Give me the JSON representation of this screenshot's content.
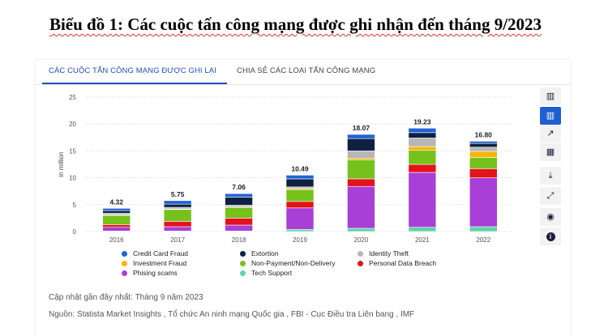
{
  "doc_title": "Biểu đồ 1: Các cuộc tấn công mạng được ghi nhận đến tháng 9/2023",
  "tabs": [
    {
      "label": "CÁC CUỘC TẤN CÔNG MẠNG ĐƯỢC GHI LẠI",
      "active": true
    },
    {
      "label": "CHIA SẺ CÁC LOẠI TẤN CÔNG MẠNG",
      "active": false
    }
  ],
  "toolbar": [
    {
      "icon": "bar-chart-icon",
      "glyph": "▥",
      "active": false
    },
    {
      "icon": "stacked-bar-icon",
      "glyph": "▥",
      "active": true
    },
    {
      "icon": "trend-line-icon",
      "glyph": "↗",
      "active": false
    },
    {
      "icon": "table-icon",
      "glyph": "▦",
      "active": false
    },
    {
      "icon": "download-icon",
      "glyph": "⤓",
      "active": false
    },
    {
      "icon": "fullscreen-icon",
      "glyph": "⤢",
      "active": false
    },
    {
      "icon": "hide-icon",
      "glyph": "◉",
      "active": false
    },
    {
      "icon": "info-icon",
      "glyph": "i",
      "active": false
    }
  ],
  "chart_data": {
    "type": "bar",
    "stacked": true,
    "ylabel": "in million",
    "ylim": [
      0,
      25
    ],
    "yticks": [
      0,
      5,
      10,
      15,
      20,
      25
    ],
    "grid": true,
    "legend_position": "bottom",
    "categories": [
      "2016",
      "2017",
      "2018",
      "2019",
      "2020",
      "2021",
      "2022"
    ],
    "totals": [
      4.32,
      5.75,
      7.06,
      10.49,
      18.07,
      19.23,
      16.8
    ],
    "series": [
      {
        "name": "Tech Support",
        "color": "#5fd3a8",
        "values": [
          0.1,
          0.1,
          0.1,
          0.4,
          0.6,
          0.8,
          0.9
        ]
      },
      {
        "name": "Phising scams",
        "color": "#a83fd6",
        "values": [
          0.7,
          0.8,
          1.1,
          4.0,
          7.8,
          10.2,
          9.1
        ]
      },
      {
        "name": "Personal Data Breach",
        "color": "#e4121a",
        "values": [
          0.5,
          1.0,
          1.3,
          1.2,
          1.4,
          1.5,
          1.7
        ]
      },
      {
        "name": "Non-Payment/Non-Delivery",
        "color": "#74c21b",
        "values": [
          1.7,
          2.2,
          2.0,
          2.2,
          3.5,
          2.6,
          2.1
        ]
      },
      {
        "name": "Investment Fraud",
        "color": "#ffb400",
        "values": [
          0.1,
          0.1,
          0.1,
          0.2,
          0.3,
          0.7,
          1.1
        ]
      },
      {
        "name": "Identity Theft",
        "color": "#b7b7b7",
        "values": [
          0.3,
          0.3,
          0.3,
          0.3,
          1.4,
          1.6,
          0.8
        ]
      },
      {
        "name": "Extortion",
        "color": "#0e2142",
        "values": [
          0.5,
          0.6,
          1.5,
          1.5,
          2.3,
          1.0,
          0.7
        ]
      },
      {
        "name": "Credit Card Fraud",
        "color": "#1f63d6",
        "values": [
          0.42,
          0.65,
          0.66,
          0.69,
          0.77,
          0.83,
          0.4
        ]
      }
    ]
  },
  "legend": [
    {
      "label": "Credit Card Fraud",
      "color": "#1f63d6"
    },
    {
      "label": "Extortion",
      "color": "#0e2142"
    },
    {
      "label": "Identity Theft",
      "color": "#b7b7b7"
    },
    {
      "label": "Investment Fraud",
      "color": "#ffb400"
    },
    {
      "label": "Non-Payment/Non-Delivery",
      "color": "#74c21b"
    },
    {
      "label": "Personal Data Breach",
      "color": "#e4121a"
    },
    {
      "label": "Phising scams",
      "color": "#a83fd6"
    },
    {
      "label": "Tech Support",
      "color": "#5fd3a8"
    }
  ],
  "update_note": "Cập nhật gần đây nhất: Tháng 9 năm 2023",
  "source_note": "Nguồn: Statista Market Insights , Tổ chức An ninh mạng Quốc gia , FBI - Cục Điều tra Liên bang , IMF"
}
